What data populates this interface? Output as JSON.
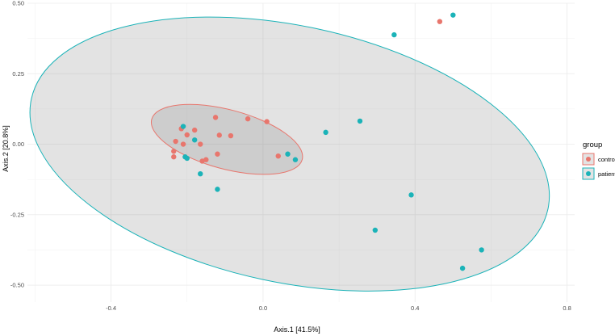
{
  "chart_data": {
    "type": "scatter",
    "xlabel": "Axis.1   [41.5%]",
    "ylabel": "Axis.2   [20.8%]",
    "xlim": [
      -0.62,
      0.82
    ],
    "ylim": [
      -0.56,
      0.5
    ],
    "x_ticks": [
      -0.4,
      0.0,
      0.4,
      0.8
    ],
    "x_tick_labels": [
      "-0.4",
      "0.0",
      "0.4",
      "0.8"
    ],
    "y_ticks": [
      -0.5,
      -0.25,
      0.0,
      0.25,
      0.5
    ],
    "y_tick_labels": [
      "-0.50",
      "-0.25",
      "0.00",
      "0.25",
      "0.50"
    ],
    "grid": true,
    "legend": {
      "title": "group",
      "position": "right"
    },
    "series": [
      {
        "name": "control",
        "color": "#E8766D",
        "points": [
          [
            0.465,
            0.435
          ],
          [
            -0.125,
            0.095
          ],
          [
            -0.04,
            0.09
          ],
          [
            0.01,
            0.08
          ],
          [
            -0.215,
            0.055
          ],
          [
            -0.18,
            0.05
          ],
          [
            -0.2,
            0.033
          ],
          [
            -0.115,
            0.032
          ],
          [
            -0.085,
            0.03
          ],
          [
            -0.23,
            0.01
          ],
          [
            -0.21,
            0.0
          ],
          [
            -0.165,
            0.0
          ],
          [
            -0.235,
            -0.025
          ],
          [
            -0.12,
            -0.035
          ],
          [
            -0.235,
            -0.045
          ],
          [
            0.04,
            -0.042
          ],
          [
            -0.15,
            -0.055
          ],
          [
            -0.16,
            -0.06
          ]
        ],
        "ellipse": {
          "center": [
            -0.095,
            0.017
          ],
          "semi_axes": [
            0.205,
            0.105
          ],
          "rotation_deg": -15
        }
      },
      {
        "name": "patient",
        "color": "#1BB3B8",
        "points": [
          [
            0.5,
            0.458
          ],
          [
            0.345,
            0.388
          ],
          [
            -0.21,
            0.063
          ],
          [
            0.255,
            0.082
          ],
          [
            0.165,
            0.042
          ],
          [
            -0.18,
            0.015
          ],
          [
            0.065,
            -0.035
          ],
          [
            -0.205,
            -0.045
          ],
          [
            -0.2,
            -0.05
          ],
          [
            0.085,
            -0.055
          ],
          [
            -0.165,
            -0.105
          ],
          [
            -0.12,
            -0.16
          ],
          [
            0.39,
            -0.18
          ],
          [
            0.295,
            -0.305
          ],
          [
            0.575,
            -0.375
          ],
          [
            0.525,
            -0.44
          ]
        ],
        "ellipse": {
          "center": [
            0.07,
            -0.035
          ],
          "semi_axes": [
            0.695,
            0.455
          ],
          "rotation_deg": -12
        }
      }
    ]
  }
}
